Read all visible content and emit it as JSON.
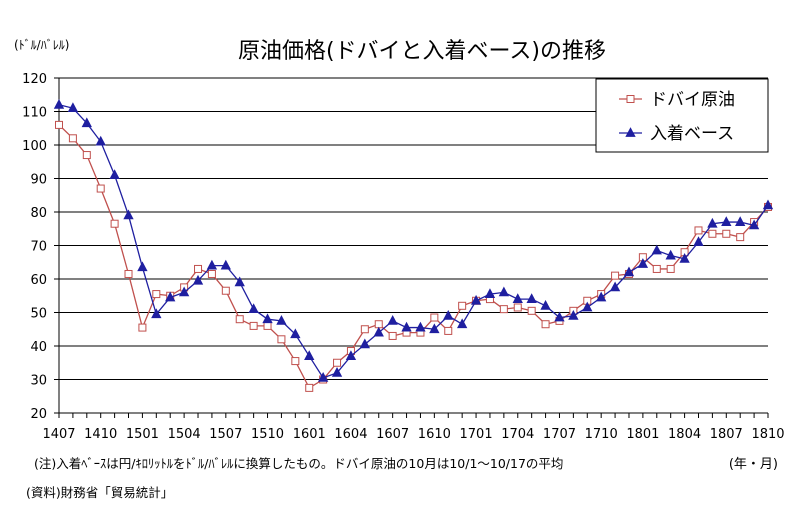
{
  "chart_data": {
    "type": "line",
    "title": "原油価格(ドバイと入着ベース)の推移",
    "ylabel": "(ﾄﾞﾙ/ﾊﾞﾚﾙ)",
    "xunit": "(年・月)",
    "ylim": [
      20,
      120
    ],
    "yticks": [
      20,
      30,
      40,
      50,
      60,
      70,
      80,
      90,
      100,
      110,
      120
    ],
    "xtick_labels": [
      "1407",
      "1410",
      "1501",
      "1504",
      "1507",
      "1510",
      "1601",
      "1604",
      "1607",
      "1610",
      "1701",
      "1704",
      "1707",
      "1710",
      "1801",
      "1804",
      "1807",
      "1810"
    ],
    "categories": [
      "1407",
      "1408",
      "1409",
      "1410",
      "1411",
      "1412",
      "1501",
      "1502",
      "1503",
      "1504",
      "1505",
      "1506",
      "1507",
      "1508",
      "1509",
      "1510",
      "1511",
      "1512",
      "1601",
      "1602",
      "1603",
      "1604",
      "1605",
      "1606",
      "1607",
      "1608",
      "1609",
      "1610",
      "1611",
      "1612",
      "1701",
      "1702",
      "1703",
      "1704",
      "1705",
      "1706",
      "1707",
      "1708",
      "1709",
      "1710",
      "1711",
      "1712",
      "1801",
      "1802",
      "1803",
      "1804",
      "1805",
      "1806",
      "1807",
      "1808",
      "1809",
      "1810"
    ],
    "grid": true,
    "legend_position": "top-right",
    "series": [
      {
        "name": "ドバイ原油",
        "color": "#c0504d",
        "marker": "square-open",
        "values": [
          106,
          102,
          97,
          87,
          76.5,
          61.5,
          45.5,
          55.5,
          55,
          57.5,
          63,
          61.5,
          56.5,
          48,
          46,
          46,
          42,
          35.5,
          27.5,
          30,
          35,
          38.5,
          45,
          46.5,
          43,
          44,
          44,
          48.5,
          44.5,
          52,
          53.5,
          54,
          51,
          51.5,
          50.5,
          46.5,
          47.5,
          50.5,
          53.5,
          55.5,
          61,
          61.5,
          66.5,
          63,
          63,
          68,
          74.5,
          73.5,
          73.5,
          72.5,
          77,
          81.5
        ]
      },
      {
        "name": "入着ベース",
        "color": "#1f1fa0",
        "marker": "triangle-filled",
        "values": [
          112,
          111,
          106.5,
          101,
          91,
          79,
          63.5,
          49.5,
          54.5,
          56,
          59.5,
          64,
          64,
          59,
          51,
          48,
          47.5,
          43.5,
          37,
          30.5,
          32,
          37,
          40.5,
          44,
          47.5,
          45.5,
          45.5,
          45,
          49,
          46.5,
          53.5,
          55.5,
          56,
          54,
          54,
          52,
          48.5,
          49,
          51.5,
          54.5,
          57.5,
          62,
          64.5,
          68.5,
          67,
          66,
          71,
          76.5,
          77,
          77,
          76,
          82
        ]
      }
    ]
  },
  "notes": {
    "note1": "(注)入着ﾍﾞｰｽは円/ｷﾛﾘｯﾄﾙをﾄﾞﾙ/ﾊﾞﾚﾙに換算したもの。ドバイ原油の10月は10/1～10/17の平均",
    "source": "(資料)財務省「貿易統計」"
  }
}
